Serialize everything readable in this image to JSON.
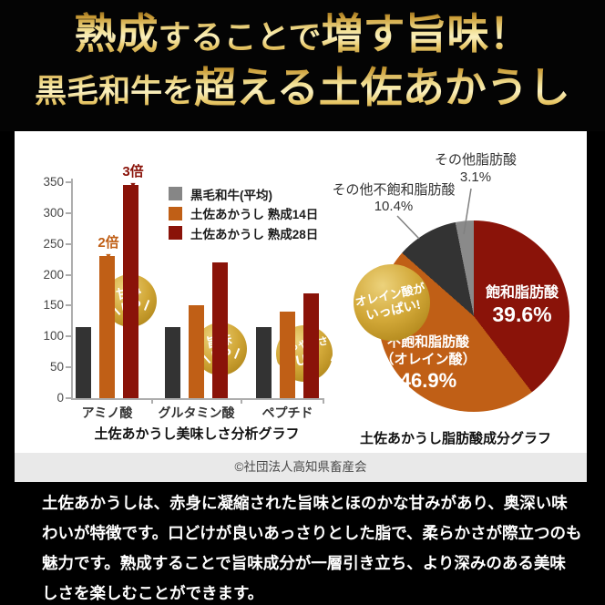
{
  "header": {
    "l1a": "熟成",
    "l1b": "することで",
    "l1c": "増す旨味！",
    "l2a": "黒毛和牛を",
    "l2b": "超える土佐あかうし"
  },
  "chart_data": [
    {
      "type": "bar",
      "title": "土佐あかうし美味しさ分析グラフ",
      "categories": [
        "アミノ酸",
        "グルタミン酸",
        "ペプチド"
      ],
      "series": [
        {
          "name": "黒毛和牛(平均)",
          "color": "#333333",
          "legend_color": "#868686",
          "values": [
            115,
            115,
            115
          ]
        },
        {
          "name": "土佐あかうし 熟成14日",
          "color": "#c05f16",
          "values": [
            230,
            150,
            140
          ]
        },
        {
          "name": "土佐あかうし 熟成28日",
          "color": "#8a1309",
          "values": [
            345,
            220,
            170
          ]
        }
      ],
      "xlabel": "",
      "ylabel": "",
      "ylim": [
        0,
        350
      ],
      "ytick_step": 50,
      "grid": false,
      "legend_position": "top-right",
      "annotations": [
        {
          "text": "2倍",
          "arrow": "▼",
          "category": "アミノ酸",
          "series": "土佐あかうし 熟成14日"
        },
        {
          "text": "3倍",
          "arrow": "▼",
          "category": "アミノ酸",
          "series": "土佐あかうし 熟成28日"
        }
      ],
      "badges": [
        {
          "line1": "甘み",
          "line2": "UP",
          "category": "アミノ酸"
        },
        {
          "line1": "旨味",
          "line2": "UP",
          "category": "グルタミン酸"
        },
        {
          "line1": "まろやかさ",
          "line2": "UP",
          "category": "ペプチド"
        }
      ]
    },
    {
      "type": "pie",
      "title": "土佐あかうし脂肪酸成分グラフ",
      "slices": [
        {
          "label": "飽和脂肪酸",
          "pct": 39.6,
          "pct_text": "39.6%",
          "color": "#8a1309"
        },
        {
          "label": "不飽和脂肪酸",
          "label2": "（オレイン酸）",
          "pct": 46.9,
          "pct_text": "46.9%",
          "color": "#c05f16"
        },
        {
          "label": "その他不飽和脂肪酸",
          "pct": 10.4,
          "pct_text": "10.4%",
          "color": "#333333"
        },
        {
          "label": "その他脂肪酸",
          "pct": 3.1,
          "pct_text": "3.1%",
          "color": "#8a8a8a"
        }
      ],
      "start_angle_deg": 0,
      "direction": "clockwise",
      "badge": {
        "line1": "オレイン酸が",
        "line2": "いっぱい!"
      }
    }
  ],
  "copyright": "©社団法人高知県畜産会",
  "footer": {
    "lines": [
      "土佐あかうしは、赤身に凝縮された旨味とほのかな甘みがあり、奥深い味",
      "わいが特徴です。口どけが良いあっさりとした脂で、柔らかさが際立つのも",
      "魅力です。熟成することで旨味成分が一層引き立ち、より深みのある美味",
      "しさを楽しむことができます。"
    ]
  }
}
